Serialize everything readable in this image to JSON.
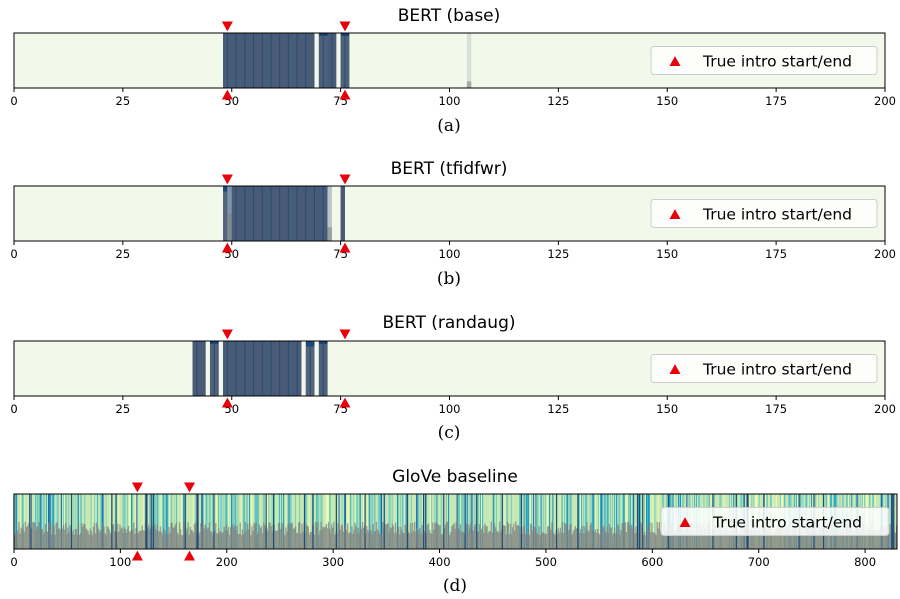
{
  "chart_data": [
    {
      "type": "heatmap",
      "title": "BERT (base)",
      "sublabel": "(a)",
      "xlim": [
        0,
        200
      ],
      "xticks": [
        0,
        25,
        50,
        75,
        100,
        125,
        150,
        175,
        200
      ],
      "true_markers": [
        49,
        76
      ],
      "legend": {
        "label": "True intro start/end",
        "placement": "right"
      },
      "background_color": "#f2f9ea",
      "segments": [
        {
          "start": 48,
          "end": 69,
          "level": 1.0
        },
        {
          "start": 70,
          "end": 72,
          "level": 0.95
        },
        {
          "start": 72,
          "end": 74,
          "level": 1.0
        },
        {
          "start": 75,
          "end": 77,
          "level": 0.95
        },
        {
          "start": 104,
          "end": 105,
          "level": 0.12
        }
      ]
    },
    {
      "type": "heatmap",
      "title": "BERT (tfidfwr)",
      "sublabel": "(b)",
      "xlim": [
        0,
        200
      ],
      "xticks": [
        0,
        25,
        50,
        75,
        100,
        125,
        150,
        175,
        200
      ],
      "true_markers": [
        49,
        76
      ],
      "legend": {
        "label": "True intro start/end",
        "placement": "right"
      },
      "background_color": "#f2f9ea",
      "segments": [
        {
          "start": 48,
          "end": 49,
          "level": 0.9
        },
        {
          "start": 49,
          "end": 50,
          "level": 0.5
        },
        {
          "start": 50,
          "end": 72,
          "level": 1.0
        },
        {
          "start": 72,
          "end": 73,
          "level": 0.25
        },
        {
          "start": 75,
          "end": 76,
          "level": 1.0
        }
      ]
    },
    {
      "type": "heatmap",
      "title": "BERT (randaug)",
      "sublabel": "(c)",
      "xlim": [
        0,
        200
      ],
      "xticks": [
        0,
        25,
        50,
        75,
        100,
        125,
        150,
        175,
        200
      ],
      "true_markers": [
        49,
        76
      ],
      "legend": {
        "label": "True intro start/end",
        "placement": "right"
      },
      "background_color": "#f2f9ea",
      "segments": [
        {
          "start": 41,
          "end": 44,
          "level": 1.0
        },
        {
          "start": 45,
          "end": 47,
          "level": 0.95
        },
        {
          "start": 48,
          "end": 66,
          "level": 1.0
        },
        {
          "start": 67,
          "end": 69,
          "level": 0.9
        },
        {
          "start": 70,
          "end": 72,
          "level": 0.95
        }
      ]
    },
    {
      "type": "heatmap",
      "title": "GloVe baseline",
      "sublabel": "(d)",
      "xlim": [
        0,
        830
      ],
      "xticks": [
        0,
        100,
        200,
        300,
        400,
        500,
        600,
        700,
        800
      ],
      "true_markers": [
        116,
        165
      ],
      "legend": {
        "label": "True intro start/end",
        "placement": "right"
      },
      "background_color": "#c7e9c0",
      "noisy": true
    }
  ],
  "colors": {
    "high": "#08306b",
    "low": "#f2f9ea",
    "marker": "#e8000b",
    "overlay": "#7f7f7f",
    "axis": "#000000"
  }
}
